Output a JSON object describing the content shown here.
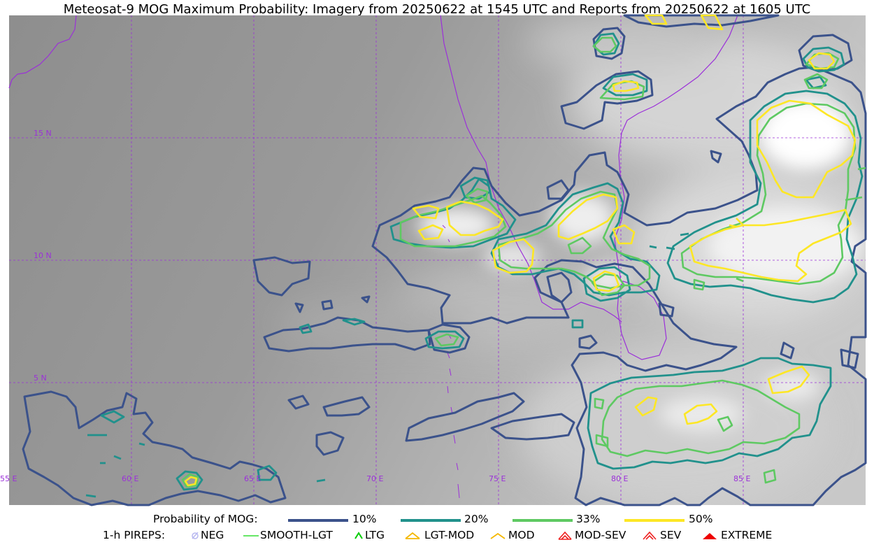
{
  "title": "Meteosat-9 MOG Maximum Probability: Imagery from 20250622 at 1545 UTC and Reports from 20250622 at 1605 UTC",
  "map": {
    "lat_labels": [
      "15 N",
      "10 N",
      "5 N"
    ],
    "lon_labels": [
      "55 E",
      "60 E",
      "65 E",
      "70 E",
      "75 E",
      "80 E",
      "85 E"
    ],
    "grid_color": "#9b30d9",
    "coastline_color": "#9b30d9"
  },
  "legend": {
    "probability_label": "Probability of MOG:",
    "levels": [
      {
        "label": "10%",
        "color": "#3b528b"
      },
      {
        "label": "20%",
        "color": "#21918c"
      },
      {
        "label": "33%",
        "color": "#5ec962"
      },
      {
        "label": "50%",
        "color": "#fde725"
      }
    ],
    "pireps_label": "1-h PIREPS:",
    "pireps": [
      {
        "label": "NEG",
        "icon": "neg-icon",
        "color": "#b8b8f0"
      },
      {
        "label": "SMOOTH-LGT",
        "icon": "smooth-lgt-icon",
        "color": "#33dd33"
      },
      {
        "label": "LTG",
        "icon": "ltg-icon",
        "color": "#00cc00"
      },
      {
        "label": "LGT-MOD",
        "icon": "lgt-mod-icon",
        "color": "#f5b800"
      },
      {
        "label": "MOD",
        "icon": "mod-icon",
        "color": "#f5b800"
      },
      {
        "label": "MOD-SEV",
        "icon": "mod-sev-icon",
        "color": "#ee2222"
      },
      {
        "label": "SEV",
        "icon": "sev-icon",
        "color": "#ee2222"
      },
      {
        "label": "EXTREME",
        "icon": "extreme-icon",
        "color": "#ee0000"
      }
    ]
  }
}
